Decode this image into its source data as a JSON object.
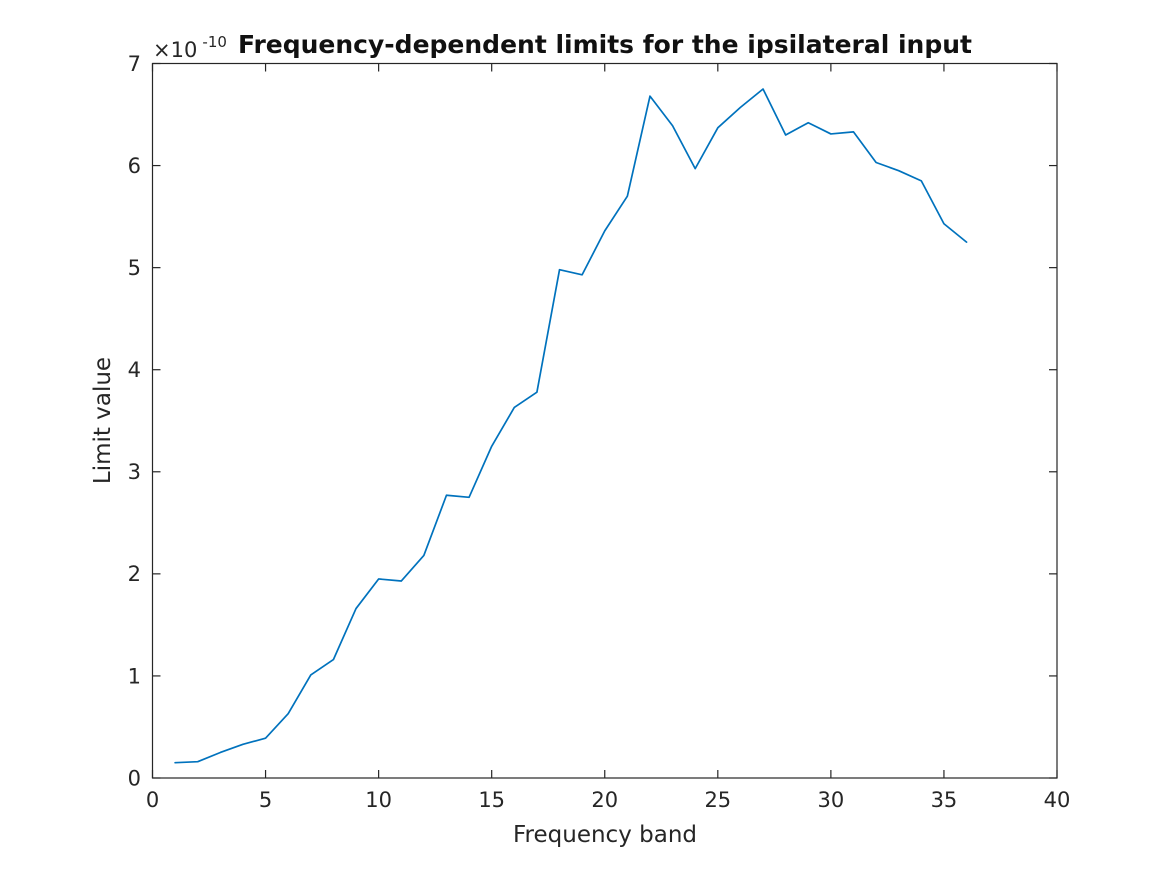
{
  "figure": {
    "background_color": "#ffffff"
  },
  "chart_data": {
    "type": "line",
    "title": "Frequency-dependent limits for the ipsilateral input",
    "xlabel": "Frequency band",
    "ylabel": "Limit value",
    "y_exponent_base": "×10",
    "y_exponent_power": "-10",
    "value_scale_note": "y values are in units of 10^-10",
    "x": [
      1,
      2,
      3,
      4,
      5,
      6,
      7,
      8,
      9,
      10,
      11,
      12,
      13,
      14,
      15,
      16,
      17,
      18,
      19,
      20,
      21,
      22,
      23,
      24,
      25,
      26,
      27,
      28,
      29,
      30,
      31,
      32,
      33,
      34,
      35,
      36
    ],
    "values": [
      0.15,
      0.16,
      0.25,
      0.33,
      0.39,
      0.63,
      1.01,
      1.16,
      1.66,
      1.95,
      1.93,
      2.18,
      2.77,
      2.75,
      3.25,
      3.63,
      3.78,
      4.98,
      4.93,
      5.36,
      5.7,
      6.68,
      6.39,
      5.97,
      6.37,
      6.57,
      6.75,
      6.3,
      6.42,
      6.31,
      6.33,
      6.03,
      5.95,
      5.85,
      5.43,
      5.25
    ],
    "xlim": [
      0,
      40
    ],
    "ylim": [
      0,
      7
    ],
    "ylim_actual": [
      0,
      7e-10
    ],
    "xticks": [
      0,
      5,
      10,
      15,
      20,
      25,
      30,
      35,
      40
    ],
    "yticks": [
      0,
      1,
      2,
      3,
      4,
      5,
      6,
      7
    ],
    "grid": false,
    "legend": null,
    "box": true,
    "tick_direction": "in",
    "line_color": "#0072BD",
    "axis_color": "#262626"
  }
}
